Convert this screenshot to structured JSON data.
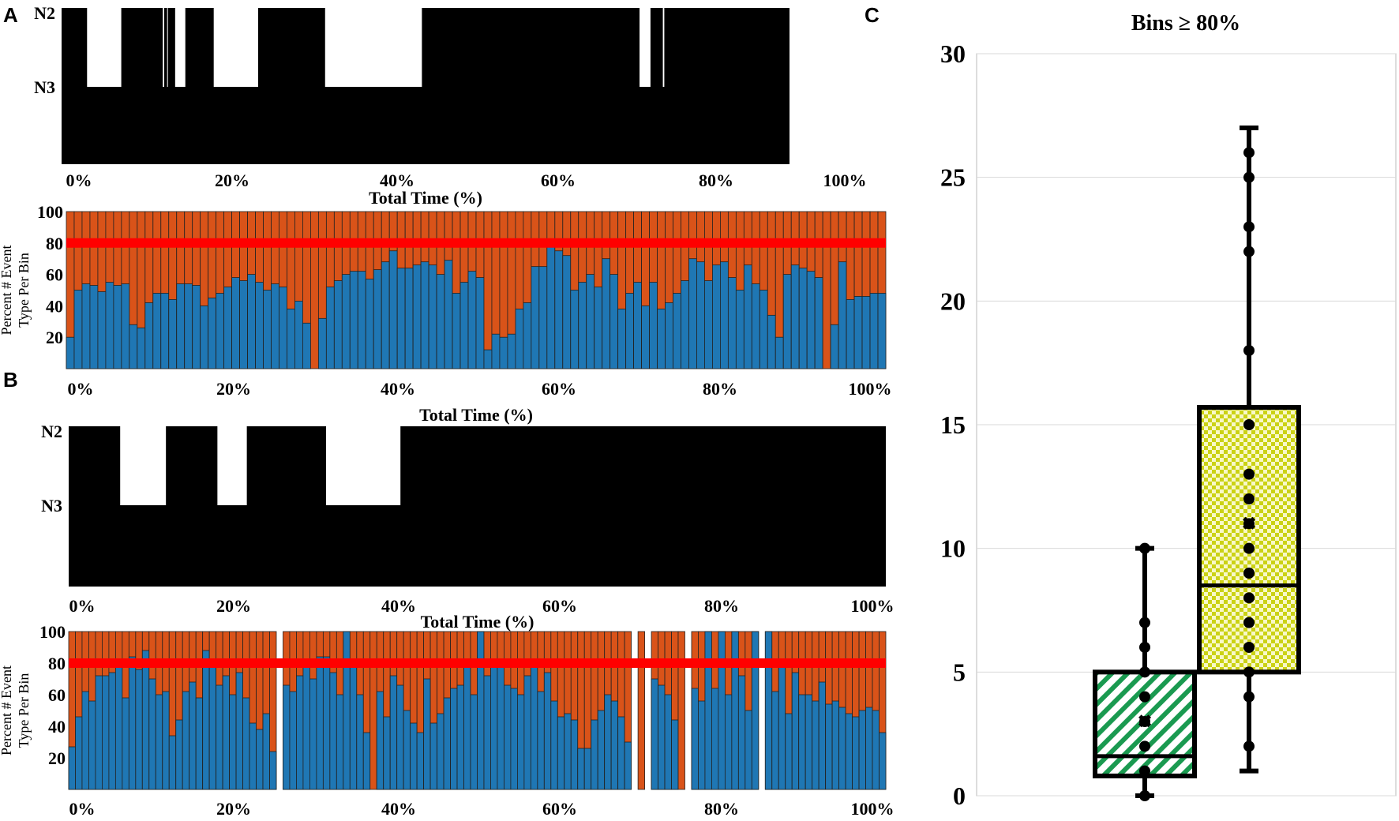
{
  "panel_labels": {
    "a": "A",
    "b": "B",
    "c": "C"
  },
  "colors": {
    "hypnogram": "#000000",
    "blue": "#1f77b4",
    "orange": "#d95319",
    "threshold": "#ff0000",
    "green_hatch": "#1a9a50",
    "yellow_check": "#cbd214"
  },
  "chart_data": [
    {
      "id": "A-hypnogram",
      "type": "area",
      "title": "",
      "xlabel": "Total Time (%)",
      "x_ticks": [
        "0%",
        "20%",
        "40%",
        "60%",
        "80%",
        "100%"
      ],
      "y_ticks": [
        "N2",
        "N3"
      ],
      "xlim": [
        0,
        100
      ],
      "n2_segments_pct": [
        [
          3.5,
          8.2
        ],
        [
          13.9,
          14.1
        ],
        [
          14.5,
          14.6
        ],
        [
          15.6,
          17.0
        ],
        [
          20.9,
          27.0
        ],
        [
          36.2,
          49.5
        ],
        [
          79.4,
          80.9
        ],
        [
          82.6,
          82.8
        ]
      ]
    },
    {
      "id": "A-bins",
      "type": "bar",
      "stacked": true,
      "xlabel": "Total Time (%)",
      "ylabel": "Percent # Event Type Per Bin",
      "x_ticks": [
        "0%",
        "20%",
        "40%",
        "60%",
        "80%",
        "100%"
      ],
      "y_ticks": [
        "20",
        "40",
        "60",
        "80",
        "100"
      ],
      "ylim": [
        0,
        100
      ],
      "threshold": 80,
      "series": [
        {
          "values": [
            20,
            50,
            54,
            53,
            49,
            55,
            53,
            54,
            28,
            26,
            42,
            48,
            48,
            44,
            54,
            54,
            53,
            40,
            45,
            48,
            52,
            58,
            56,
            60,
            55,
            50,
            54,
            52,
            38,
            43,
            29,
            0,
            32,
            52,
            56,
            60,
            62,
            62,
            57,
            63,
            68,
            75,
            64,
            64,
            66,
            68,
            66,
            60,
            69,
            48,
            55,
            62,
            58,
            12,
            22,
            20,
            22,
            38,
            42,
            65,
            65,
            78,
            75,
            72,
            50,
            55,
            60,
            52,
            70,
            60,
            38,
            48,
            55,
            40,
            55,
            38,
            42,
            48,
            56,
            70,
            68,
            56,
            66,
            68,
            58,
            50,
            66,
            54,
            50,
            34,
            20,
            60,
            66,
            64,
            62,
            58,
            0,
            28,
            68,
            44,
            46,
            46,
            48,
            48
          ]
        }
      ]
    },
    {
      "id": "B-hypnogram",
      "type": "area",
      "xlabel": "Total Time (%)",
      "x_ticks": [
        "0%",
        "20%",
        "40%",
        "60%",
        "80%",
        "100%"
      ],
      "y_ticks": [
        "N2",
        "N3"
      ],
      "xlim": [
        0,
        100
      ],
      "n2_segments_pct": [
        [
          6.3,
          11.9
        ],
        [
          18.2,
          21.8
        ],
        [
          31.5,
          40.6
        ]
      ]
    },
    {
      "id": "B-bins",
      "type": "bar",
      "stacked": true,
      "xlabel": "Total Time (%)",
      "ylabel": "Percent # Event Type Per Bin",
      "x_ticks": [
        "0%",
        "20%",
        "40%",
        "60%",
        "80%",
        "100%"
      ],
      "y_ticks": [
        "20",
        "40",
        "60",
        "80",
        "100"
      ],
      "ylim": [
        0,
        100
      ],
      "threshold": 80,
      "series": [
        {
          "values": [
            27,
            46,
            62,
            56,
            72,
            72,
            74,
            80,
            58,
            84,
            76,
            88,
            70,
            60,
            62,
            34,
            44,
            62,
            68,
            58,
            88,
            80,
            66,
            72,
            60,
            74,
            58,
            42,
            38,
            48,
            24,
            null,
            66,
            62,
            72,
            78,
            70,
            84,
            84,
            74,
            60,
            100,
            78,
            60,
            36,
            0,
            62,
            46,
            72,
            66,
            50,
            42,
            36,
            70,
            42,
            48,
            58,
            64,
            66,
            80,
            60,
            100,
            72,
            78,
            78,
            66,
            64,
            60,
            72,
            80,
            62,
            74,
            56,
            46,
            48,
            44,
            26,
            26,
            44,
            50,
            60,
            56,
            46,
            30,
            null,
            0,
            null,
            70,
            66,
            60,
            44,
            0,
            null,
            64,
            56,
            100,
            64,
            100,
            60,
            100,
            72,
            50,
            100,
            null,
            100,
            62,
            80,
            48,
            74,
            60,
            60,
            56,
            68,
            54,
            56,
            52,
            48,
            46,
            50,
            52,
            50,
            36
          ]
        }
      ]
    },
    {
      "id": "C-box",
      "type": "box",
      "title": "Bins ≥ 80%",
      "y_ticks": [
        "0",
        "5",
        "10",
        "15",
        "20",
        "25",
        "30"
      ],
      "ylim": [
        0,
        30
      ],
      "grid": true,
      "boxes": [
        {
          "whisker_low": 0,
          "q1": 0.8,
          "median": 1.6,
          "q3": 5,
          "whisker_high": 10,
          "mean": 3,
          "points": [
            0,
            1,
            2,
            3,
            4,
            5,
            6,
            7,
            10
          ],
          "fill": "green-hatch"
        },
        {
          "whisker_low": 1,
          "q1": 5,
          "median": 8.5,
          "q3": 15.7,
          "whisker_high": 27,
          "mean": 11,
          "points": [
            2,
            4,
            5,
            6,
            7,
            8,
            9,
            10,
            11,
            12,
            13,
            15,
            18,
            22,
            23,
            25,
            26
          ],
          "fill": "yellow-check"
        }
      ]
    }
  ]
}
